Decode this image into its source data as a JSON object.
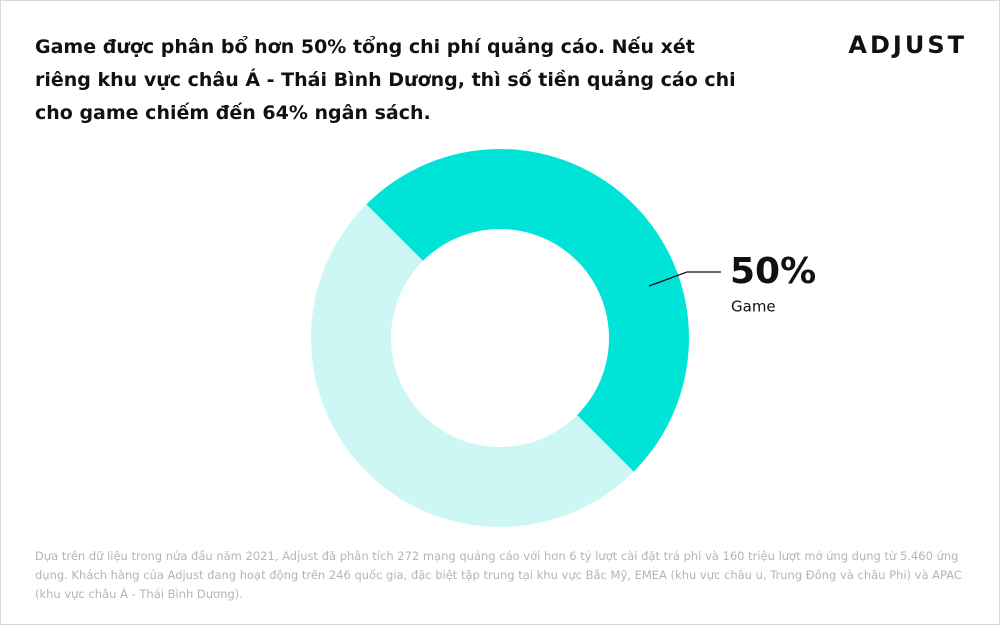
{
  "chart_data": {
    "type": "pie",
    "title": "Game được phân bổ hơn 50% tổng chi phí quảng cáo. Nếu xét riêng khu vực châu Á - Thái Bình Dương, thì số tiền quảng cáo chi cho game chiếm đến 64% ngân sách.",
    "logo": "ADJUST",
    "categories": [
      "Game",
      null
    ],
    "values": [
      50,
      50
    ],
    "value_labels": [
      "50%",
      null
    ],
    "colors": [
      "#00e3d7",
      "#cdf7f4"
    ],
    "donut": true,
    "footnote": "Dựa trên dữ liệu trong nửa đầu năm 2021, Adjust đã phân tích 272 mạng quảng cáo với hơn 6 tỷ lượt cài đặt trả phí và 160 triệu lượt mở ứng dụng từ 5.460 ứng dụng. Khách hàng của Adjust đang hoạt động trên 246 quốc gia, đặc biệt tập trung tại khu vực Bắc Mỹ, EMEA (khu vực châu  u, Trung Đông và châu Phi) và APAC (khu vực châu Á - Thái Bình Dương)."
  }
}
